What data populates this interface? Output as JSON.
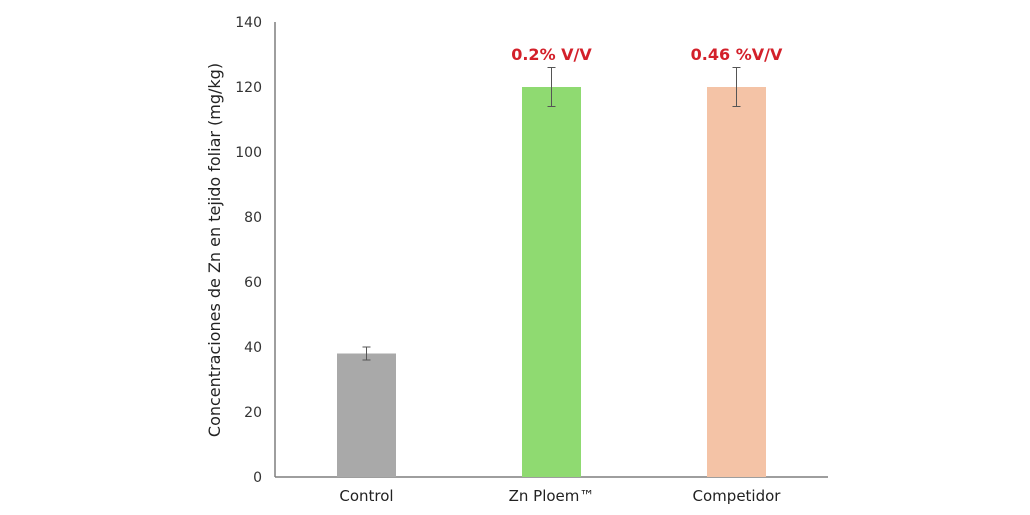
{
  "chart_data": {
    "type": "bar",
    "title": "",
    "xlabel": "",
    "ylabel": "Concentraciones de Zn en tejido foliar (mg/kg)",
    "ylim": [
      0,
      140
    ],
    "yticks": [
      0,
      20,
      40,
      60,
      80,
      100,
      120,
      140
    ],
    "ytick_labels": [
      "0",
      "20",
      "40",
      "60",
      "80",
      "100",
      "120",
      "140"
    ],
    "grid": false,
    "legend": null,
    "categories": [
      "Control",
      "Zn Ploem™",
      "Competidor"
    ],
    "values": [
      38,
      120,
      120
    ],
    "error_low": [
      36,
      114,
      114
    ],
    "error_high": [
      40,
      126,
      126
    ],
    "colors": [
      "#a9a9a9",
      "#8fda71",
      "#f4c3a6"
    ],
    "annotations": [
      "",
      "0.2% V/V",
      "0.46 %V/V"
    ],
    "annotation_color": "#d3202a"
  }
}
